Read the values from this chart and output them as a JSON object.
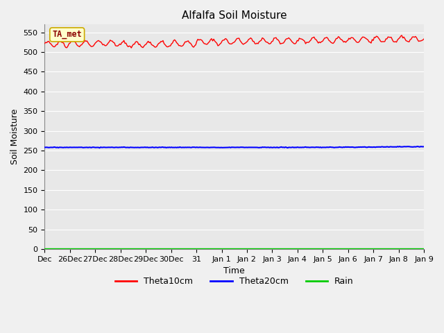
{
  "title": "Alfalfa Soil Moisture",
  "xlabel": "Time",
  "ylabel": "Soil Moisture",
  "ylim": [
    0,
    570
  ],
  "yticks": [
    0,
    50,
    100,
    150,
    200,
    250,
    300,
    350,
    400,
    450,
    500,
    550
  ],
  "x_labels": [
    "Dec",
    "26Dec",
    "27Dec",
    "28Dec",
    "29Dec",
    "30Dec",
    "31",
    "Jan 1",
    "Jan 2",
    "Jan 3",
    "Jan 4",
    "Jan 5",
    "Jan 6",
    "Jan 7",
    "Jan 8",
    "Jan 9"
  ],
  "bg_color": "#e8e8e8",
  "fig_bg_color": "#f0f0f0",
  "line_colors": {
    "theta10": "#ff0000",
    "theta20": "#0000ff",
    "rain": "#00cc00"
  },
  "annotation_text": "TA_met",
  "annotation_facecolor": "#ffffcc",
  "annotation_edgecolor": "#ccaa00",
  "legend_labels": [
    "Theta10cm",
    "Theta20cm",
    "Rain"
  ],
  "figsize": [
    6.4,
    4.8
  ],
  "dpi": 100
}
